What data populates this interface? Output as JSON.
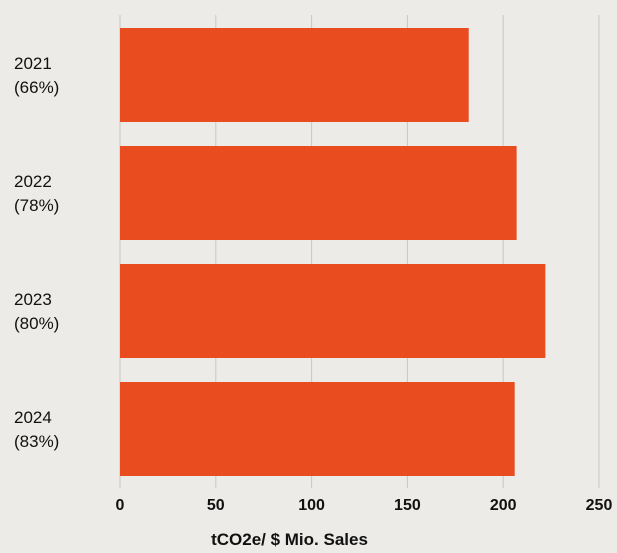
{
  "chart_data": {
    "type": "bar",
    "orientation": "horizontal",
    "categories": [
      "2021\n(66%)",
      "2022\n(78%)",
      "2023\n(80%)",
      "2024\n(83%)"
    ],
    "category_lines": [
      [
        "2021",
        "(66%)"
      ],
      [
        "2022",
        "(78%)"
      ],
      [
        "2023",
        "(80%)"
      ],
      [
        "2024",
        "(83%)"
      ]
    ],
    "values": [
      182,
      207,
      222,
      206
    ],
    "xlabel": "tCO2e/ $ Mio. Sales",
    "ylabel": "",
    "xlim": [
      0,
      250
    ],
    "xticks": [
      0,
      50,
      100,
      150,
      200,
      250
    ],
    "grid": "vertical",
    "colors": {
      "bar": "#e84c1f",
      "grid": "#c9c7c1",
      "background": "#ecebe7",
      "text": "#111111"
    }
  }
}
